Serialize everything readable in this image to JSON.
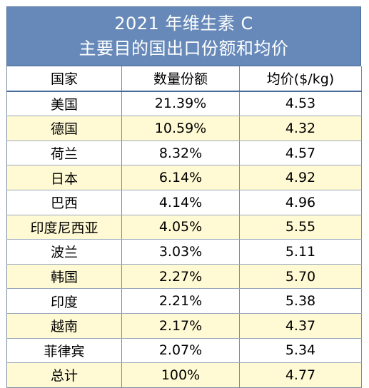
{
  "title": {
    "line1": "2021 年维生素 C",
    "line2": "主要目的国出口份额和均价"
  },
  "columns": {
    "country": "国家",
    "share": "数量份额",
    "price": "均价($/kg)"
  },
  "rows": [
    {
      "country": "美国",
      "share": "21.39%",
      "price": "4.53"
    },
    {
      "country": "德国",
      "share": "10.59%",
      "price": "4.32"
    },
    {
      "country": "荷兰",
      "share": "8.32%",
      "price": "4.57"
    },
    {
      "country": "日本",
      "share": "6.14%",
      "price": "4.92"
    },
    {
      "country": "巴西",
      "share": "4.14%",
      "price": "4.96"
    },
    {
      "country": "印度尼西亚",
      "share": "4.05%",
      "price": "5.55"
    },
    {
      "country": "波兰",
      "share": "3.03%",
      "price": "5.11"
    },
    {
      "country": "韩国",
      "share": "2.27%",
      "price": "5.70"
    },
    {
      "country": "印度",
      "share": "2.21%",
      "price": "5.38"
    },
    {
      "country": "越南",
      "share": "2.17%",
      "price": "4.37"
    },
    {
      "country": "菲律宾",
      "share": "2.07%",
      "price": "5.34"
    },
    {
      "country": "总计",
      "share": "100%",
      "price": "4.77"
    }
  ],
  "colors": {
    "header_bg": "#6689b9",
    "stripe_bg": "#fffad3"
  }
}
